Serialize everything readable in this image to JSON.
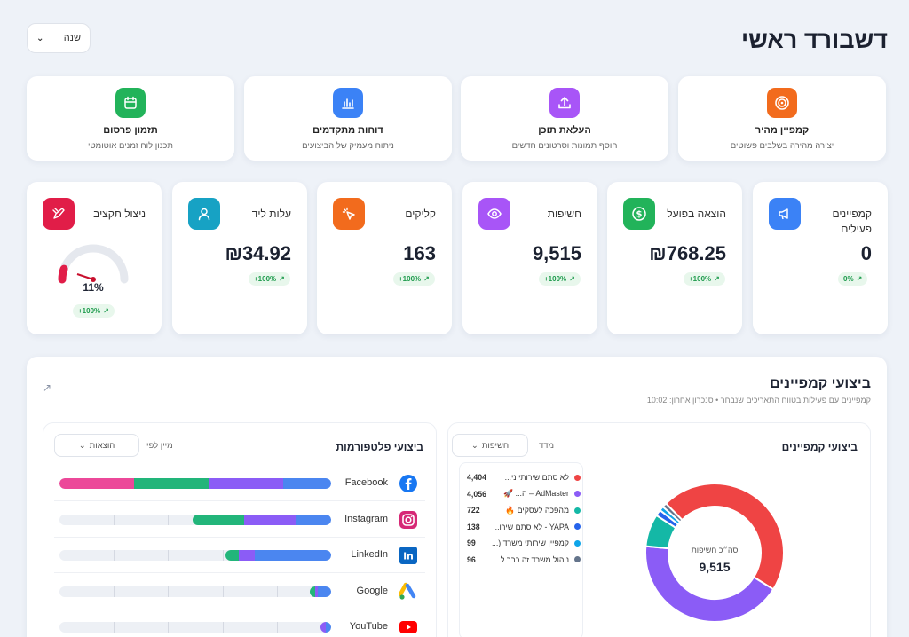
{
  "header": {
    "title": "דשבורד ראשי",
    "period": "שנה"
  },
  "quick_actions": [
    {
      "title": "קמפיין מהיר",
      "subtitle": "יצירה מהירה בשלבים פשוטים",
      "color": "#f26b1d",
      "icon": "target-icon"
    },
    {
      "title": "העלאת תוכן",
      "subtitle": "הוסף תמונות וסרטונים חדשים",
      "color": "#a855f7",
      "icon": "upload-icon"
    },
    {
      "title": "דוחות מתקדמים",
      "subtitle": "ניתוח מעמיק של הביצועים",
      "color": "#3b82f6",
      "icon": "bar-chart-icon"
    },
    {
      "title": "תזמון פרסום",
      "subtitle": "תכנון לוח זמנים אוטומטי",
      "color": "#22b35a",
      "icon": "calendar-icon"
    }
  ],
  "stats": [
    {
      "label": "קמפיינים פעילים",
      "value": "0",
      "badge": "0%",
      "color": "#3b82f6",
      "icon": "megaphone-icon"
    },
    {
      "label": "הוצאה בפועל",
      "value": "₪768.25",
      "badge": "+100%",
      "color": "#22b35a",
      "icon": "dollar-icon"
    },
    {
      "label": "חשיפות",
      "value": "9,515",
      "badge": "+100%",
      "color": "#a855f7",
      "icon": "eye-icon"
    },
    {
      "label": "קליקים",
      "value": "163",
      "badge": "+100%",
      "color": "#f26b1d",
      "icon": "cursor-icon"
    },
    {
      "label": "עלות ליד",
      "value": "₪34.92",
      "badge": "+100%",
      "color": "#17a2c4",
      "icon": "user-icon"
    },
    {
      "label": "ניצול תקציב",
      "value": "11%",
      "badge": "+100%",
      "color": "#e11d48",
      "icon": "pencil-ruler-icon",
      "gauge_fraction": 0.11
    }
  ],
  "performance": {
    "title": "ביצועי קמפיינים",
    "subtitle": "קמפיינים עם פעילות בטווח התאריכים שנבחר",
    "sync": "סנכרון אחרון: 10:02",
    "campaigns": {
      "title": "ביצועי קמפיינים",
      "metric_label": "מדד",
      "metric": "חשיפות",
      "donut_label": "סה״כ חשיפות",
      "donut_total": "9,515",
      "items": [
        {
          "name": "לא סתם שירותי ני...",
          "value": 4404,
          "display": "4,404",
          "color": "#ef4444"
        },
        {
          "name": "AdMaster – ה... 🚀",
          "value": 4056,
          "display": "4,056",
          "color": "#8b5cf6"
        },
        {
          "name": "מהפכה לעסקים 🔥",
          "value": 722,
          "display": "722",
          "color": "#14b8a6"
        },
        {
          "name": "YAPA - לא סתם שירו...",
          "value": 138,
          "display": "138",
          "color": "#2563eb"
        },
        {
          "name": "קמפיין שירותי משרד (...",
          "value": 99,
          "display": "99",
          "color": "#0ea5e9"
        },
        {
          "name": "ניהול משרד זה כבר ל...",
          "value": 96,
          "display": "96",
          "color": "#64748b"
        }
      ]
    },
    "platforms": {
      "title": "ביצועי פלטפורמות",
      "sort_label": "מיין לפי",
      "sort": "הוצאות",
      "rows": [
        {
          "name": "Facebook",
          "icon": "facebook-icon",
          "icon_color": "#1877f2",
          "segments": [
            0.275,
            0.275,
            0.275,
            0.175
          ]
        },
        {
          "name": "Instagram",
          "icon": "instagram-icon",
          "icon_color": "#d62976",
          "segments": [
            0.19,
            0.19,
            0.13
          ]
        },
        {
          "name": "LinkedIn",
          "icon": "linkedin-icon",
          "icon_color": "#0a66c2",
          "segments": [
            0.05,
            0.06,
            0.28
          ]
        },
        {
          "name": "Google",
          "icon": "google-ads-icon",
          "icon_color": "#fbbc04",
          "segments": [
            0.02,
            0.01,
            0.05
          ]
        },
        {
          "name": "YouTube",
          "icon": "youtube-icon",
          "icon_color": "#ff0000",
          "segments": [
            0.02,
            0.02
          ]
        }
      ],
      "segment_colors": [
        "#ec4899",
        "#22b57a",
        "#8b5cf6",
        "#4b86f0"
      ]
    }
  }
}
